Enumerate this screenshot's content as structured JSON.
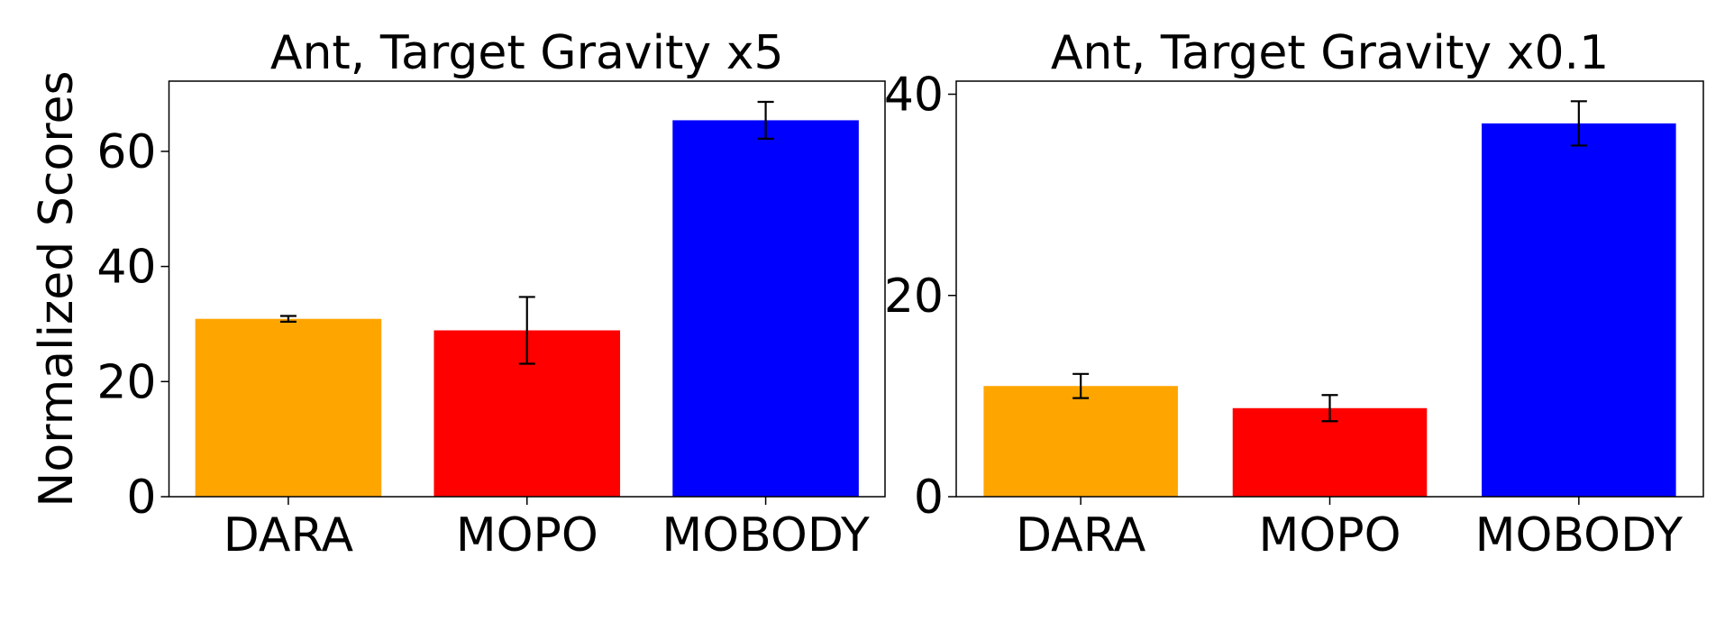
{
  "chart_data": [
    {
      "type": "bar",
      "title": "Ant, Target Gravity x5",
      "y_label": "Normalized Scores",
      "categories": [
        "DARA",
        "MOPO",
        "MOBODY"
      ],
      "values": [
        30.9,
        28.9,
        65.4
      ],
      "errors": [
        0.5,
        5.8,
        3.2
      ],
      "colors": [
        "#ffa500",
        "#ff0000",
        "#0000ff"
      ],
      "ylim": [
        0,
        72.2
      ],
      "yticks": [
        0,
        20,
        40,
        60
      ]
    },
    {
      "type": "bar",
      "title": "Ant, Target Gravity x0.1",
      "categories": [
        "DARA",
        "MOPO",
        "MOBODY"
      ],
      "values": [
        11.0,
        8.8,
        37.1
      ],
      "errors": [
        1.2,
        1.3,
        2.2
      ],
      "colors": [
        "#ffa500",
        "#ff0000",
        "#0000ff"
      ],
      "ylim": [
        0,
        41.3
      ],
      "yticks": [
        0,
        20,
        40
      ]
    }
  ]
}
